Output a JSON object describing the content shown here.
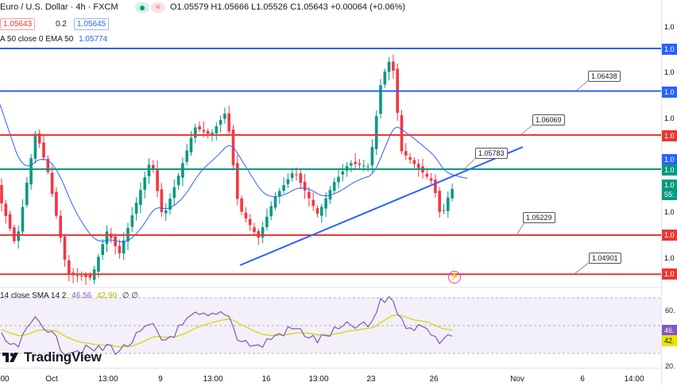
{
  "header": {
    "symbol_title": "Euro / U.S. Dollar · 4h · FXCM",
    "ohlc": "O1.05579 H1.05666 L1.05526 C1.05643 +0.00064 (+0.06%)",
    "sell_price": "1.05643",
    "spread": "0.2",
    "buy_price": "1.05645",
    "ema_label": "A 50 close 0 EMA 50",
    "ema_value": "1.05774"
  },
  "line_labels": [
    {
      "text": "1.06438",
      "value": 1.06438
    },
    {
      "text": "1.06069",
      "value": 1.06069
    },
    {
      "text": "1.05783",
      "value": 1.05783
    },
    {
      "text": "1.05229",
      "value": 1.05229
    },
    {
      "text": "1.04901",
      "value": 1.04901
    }
  ],
  "price_axis": {
    "tick_labels": [
      "1.0",
      "1.0",
      "1.0",
      "1.0",
      "1.0",
      "1.0",
      "1.0",
      "1.0",
      "1.0"
    ],
    "overlay_labels": [
      {
        "text": "1.0",
        "color": "#2962ff"
      },
      {
        "text": "1.0",
        "color": "#2962ff"
      },
      {
        "text": "1.0",
        "color": "#e53935"
      },
      {
        "text": "1.0",
        "color": "#2962ff"
      },
      {
        "text": "1.0",
        "color": "#089981"
      },
      {
        "text": "1.0",
        "color": "#089981"
      },
      {
        "text": "55:",
        "color": "#089981"
      },
      {
        "text": "1.0",
        "color": "#e53935"
      },
      {
        "text": "1.0",
        "color": "#e53935"
      }
    ]
  },
  "rsi": {
    "label": "14 close SMA 14 2",
    "rsi_value": "46.56",
    "sma_value": "42.90",
    "extra": "∅ ∅",
    "axis_ticks": [
      "60.",
      "40.",
      "20."
    ],
    "badge_rsi": "46.",
    "badge_sma": "42."
  },
  "time_axis": {
    "labels": [
      "00",
      "Oct",
      "13:00",
      "9",
      "13:00",
      "16",
      "13:00",
      "23",
      "26",
      "Nov",
      "6",
      "14:00"
    ]
  },
  "logo": {
    "text": "TradingView"
  },
  "colors": {
    "up": "#089981",
    "down": "#f23645",
    "ema": "#2962ff",
    "resistance": "#e53935",
    "blue_level": "#2962ff",
    "teal_level": "#089981",
    "rsi_line": "#7e57c2",
    "rsi_sma": "#d4d400"
  }
}
